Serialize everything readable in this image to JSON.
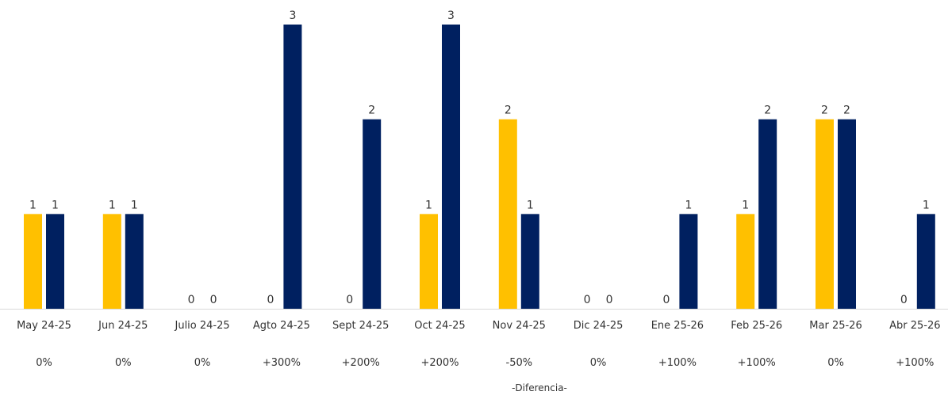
{
  "chart_data": {
    "type": "bar",
    "categories": [
      "May 24-25",
      "Jun 24-25",
      "Julio 24-25",
      "Agto 24-25",
      "Sept 24-25",
      "Oct 24-25",
      "Nov 24-25",
      "Dic 24-25",
      "Ene 25-26",
      "Feb 25-26",
      "Mar 25-26",
      "Abr 25-26"
    ],
    "series": [
      {
        "values": [
          1,
          1,
          0,
          0,
          0,
          1,
          2,
          0,
          0,
          1,
          2,
          0
        ],
        "color": "#FFC000"
      },
      {
        "values": [
          1,
          1,
          0,
          3,
          2,
          3,
          1,
          0,
          1,
          2,
          2,
          1
        ],
        "color": "#002060"
      }
    ],
    "differences": [
      "0%",
      "0%",
      "0%",
      "+300%",
      "+200%",
      "+200%",
      "-50%",
      "0%",
      "+100%",
      "+100%",
      "0%",
      "+100%"
    ],
    "footer": "-Diferencia-",
    "ylim": [
      0,
      3
    ],
    "grid": false,
    "legend": "none",
    "axis_color": "#D9D9D9"
  }
}
